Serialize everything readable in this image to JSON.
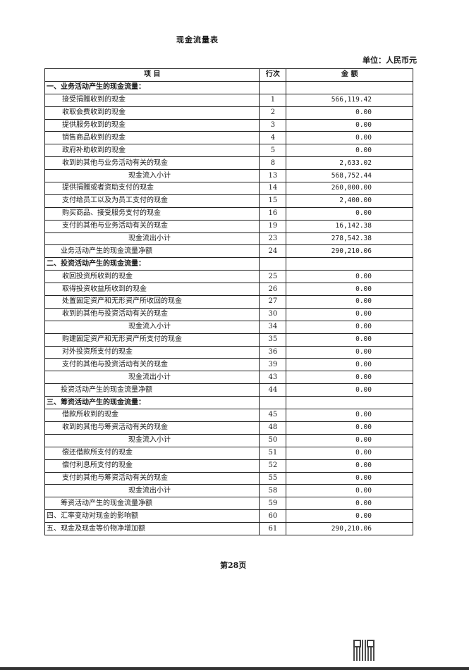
{
  "title": "现金流量表",
  "unit": "单位：人民币元",
  "headers": {
    "item": "项  目",
    "line": "行次",
    "amount": "金  额"
  },
  "rows": [
    {
      "type": "section",
      "item": "一、业务活动产生的现金流量：",
      "line": "",
      "amount": ""
    },
    {
      "type": "normal",
      "item": "接受捐赠收到的现金",
      "line": "1",
      "amount": "566,119.42"
    },
    {
      "type": "normal",
      "item": "收取会费收到的现金",
      "line": "2",
      "amount": "0.00"
    },
    {
      "type": "normal",
      "item": "提供服务收到的现金",
      "line": "3",
      "amount": "0.00"
    },
    {
      "type": "normal",
      "item": "销售商品收到的现金",
      "line": "4",
      "amount": "0.00"
    },
    {
      "type": "normal",
      "item": "政府补助收到的现金",
      "line": "5",
      "amount": "0.00"
    },
    {
      "type": "normal",
      "item": "收到的其他与业务活动有关的现金",
      "line": "8",
      "amount": "2,633.02"
    },
    {
      "type": "sub",
      "item": "现金流入小计",
      "line": "13",
      "amount": "568,752.44"
    },
    {
      "type": "normal",
      "item": "提供捐赠或者资助支付的现金",
      "line": "14",
      "amount": "260,000.00"
    },
    {
      "type": "normal",
      "item": "支付给员工以及为员工支付的现金",
      "line": "15",
      "amount": "2,400.00"
    },
    {
      "type": "normal",
      "item": "购买商品、接受服务支付的现金",
      "line": "16",
      "amount": "0.00"
    },
    {
      "type": "normal",
      "item": "支付的其他与业务活动有关的现金",
      "line": "19",
      "amount": "16,142.38"
    },
    {
      "type": "sub",
      "item": "现金流出小计",
      "line": "23",
      "amount": "278,542.38"
    },
    {
      "type": "total",
      "item": "业务活动产生的现金流量净额",
      "line": "24",
      "amount": "290,210.06"
    },
    {
      "type": "section",
      "item": "二、投资活动产生的现金流量：",
      "line": "",
      "amount": ""
    },
    {
      "type": "normal",
      "item": "收回投资所收到的现金",
      "line": "25",
      "amount": "0.00"
    },
    {
      "type": "normal",
      "item": "取得投资收益所收到的现金",
      "line": "26",
      "amount": "0.00"
    },
    {
      "type": "normal",
      "item": "处置固定资产和无形资产所收回的现金",
      "line": "27",
      "amount": "0.00"
    },
    {
      "type": "normal",
      "item": "收到的其他与投资活动有关的现金",
      "line": "30",
      "amount": "0.00"
    },
    {
      "type": "sub",
      "item": "现金流入小计",
      "line": "34",
      "amount": "0.00"
    },
    {
      "type": "normal",
      "item": "购建固定资产和无形资产所支付的现金",
      "line": "35",
      "amount": "0.00"
    },
    {
      "type": "normal",
      "item": "对外投资所支付的现金",
      "line": "36",
      "amount": "0.00"
    },
    {
      "type": "normal",
      "item": "支付的其他与投资活动有关的现金",
      "line": "39",
      "amount": "0.00"
    },
    {
      "type": "sub",
      "item": "现金流出小计",
      "line": "43",
      "amount": "0.00"
    },
    {
      "type": "total",
      "item": "投资活动产生的现金流量净额",
      "line": "44",
      "amount": "0.00"
    },
    {
      "type": "section",
      "item": "三、筹资活动产生的现金流量：",
      "line": "",
      "amount": ""
    },
    {
      "type": "normal",
      "item": "借款所收到的现金",
      "line": "45",
      "amount": "0.00"
    },
    {
      "type": "normal",
      "item": "收到的其他与筹资活动有关的现金",
      "line": "48",
      "amount": "0.00"
    },
    {
      "type": "sub",
      "item": "现金流入小计",
      "line": "50",
      "amount": "0.00"
    },
    {
      "type": "normal",
      "item": "偿还借款所支付的现金",
      "line": "51",
      "amount": "0.00"
    },
    {
      "type": "normal",
      "item": "偿付利息所支付的现金",
      "line": "52",
      "amount": "0.00"
    },
    {
      "type": "normal",
      "item": "支付的其他与筹资活动有关的现金",
      "line": "55",
      "amount": "0.00"
    },
    {
      "type": "sub",
      "item": "现金流出小计",
      "line": "58",
      "amount": "0.00"
    },
    {
      "type": "total",
      "item": "筹资活动产生的现金流量净额",
      "line": "59",
      "amount": "0.00"
    },
    {
      "type": "final",
      "item": "四、汇率变动对现金的影响额",
      "line": "60",
      "amount": "0.00"
    },
    {
      "type": "final",
      "item": "五、现金及现金等价物净增加额",
      "line": "61",
      "amount": "290,210.06"
    }
  ],
  "page_number": "第28页"
}
